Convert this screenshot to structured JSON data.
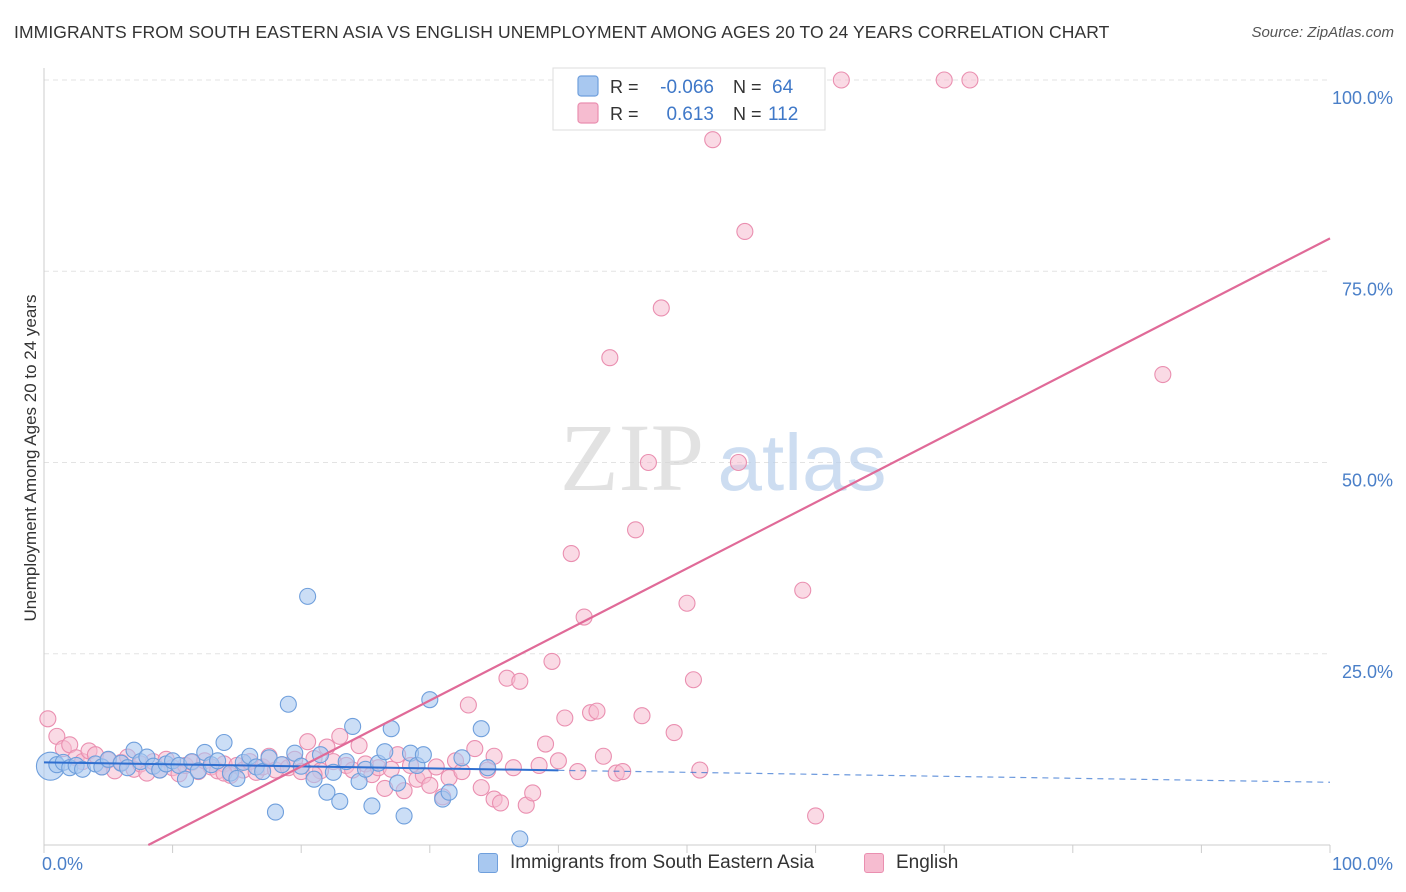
{
  "title": "IMMIGRANTS FROM SOUTH EASTERN ASIA VS ENGLISH UNEMPLOYMENT AMONG AGES 20 TO 24 YEARS CORRELATION CHART",
  "source": "Source: ZipAtlas.com",
  "watermark": {
    "zip": "ZIP",
    "atlas": "atlas"
  },
  "colors": {
    "blue_fill": "#a8c8f0",
    "blue_stroke": "#6f9fdc",
    "blue_line": "#2f6fd0",
    "pink_fill": "#f6bcd0",
    "pink_stroke": "#ea8fb0",
    "pink_line": "#e06a98",
    "axis_label": "#4a7fc8",
    "grid": "#e3e3e3"
  },
  "legend": {
    "series": [
      {
        "r_label": "R =",
        "r_value": "-0.066",
        "n_label": "N =",
        "n_value": "64"
      },
      {
        "r_label": "R =",
        "r_value": "0.613",
        "n_label": "N =",
        "n_value": "112"
      }
    ]
  },
  "bottom_legend": {
    "blue": "Immigrants from South Eastern Asia",
    "pink": "English"
  },
  "chart_data": {
    "type": "scatter",
    "xlabel": "",
    "ylabel": "Unemployment Among Ages 20 to 24 years",
    "xlim": [
      0,
      100
    ],
    "ylim": [
      0,
      100
    ],
    "x_tick_labels": {
      "min": "0.0%",
      "max": "100.0%"
    },
    "y_ticks": [
      25,
      50,
      75,
      100
    ],
    "y_tick_labels": [
      "25.0%",
      "50.0%",
      "75.0%",
      "100.0%"
    ],
    "grid": true,
    "legend_placement": "top-center",
    "series": [
      {
        "name": "Immigrants from South Eastern Asia",
        "color": "#a8c8f0",
        "trend": {
          "x0": 0,
          "y0": 10.8,
          "x1": 100,
          "y1": 8.2,
          "solid_until_x": 40
        },
        "points": [
          [
            0.5,
            10.3
          ],
          [
            1,
            10.5
          ],
          [
            1.5,
            10.8
          ],
          [
            2,
            10.1
          ],
          [
            2.5,
            10.4
          ],
          [
            3,
            9.9
          ],
          [
            4,
            10.6
          ],
          [
            4.5,
            10.2
          ],
          [
            5,
            11.2
          ],
          [
            6,
            10.7
          ],
          [
            6.5,
            10.1
          ],
          [
            7,
            12.4
          ],
          [
            7.5,
            10.9
          ],
          [
            8,
            11.5
          ],
          [
            8.5,
            10.3
          ],
          [
            9,
            9.8
          ],
          [
            9.5,
            10.6
          ],
          [
            10,
            11.0
          ],
          [
            10.5,
            10.4
          ],
          [
            11,
            8.6
          ],
          [
            11.5,
            10.9
          ],
          [
            12,
            9.7
          ],
          [
            12.5,
            12.1
          ],
          [
            13,
            10.5
          ],
          [
            13.5,
            11.0
          ],
          [
            14,
            13.4
          ],
          [
            14.5,
            9.4
          ],
          [
            15,
            8.7
          ],
          [
            15.5,
            10.8
          ],
          [
            16,
            11.6
          ],
          [
            16.5,
            10.2
          ],
          [
            17,
            9.6
          ],
          [
            17.5,
            11.4
          ],
          [
            18,
            4.3
          ],
          [
            18.5,
            10.5
          ],
          [
            19,
            18.4
          ],
          [
            19.5,
            12.0
          ],
          [
            20,
            10.3
          ],
          [
            20.5,
            32.5
          ],
          [
            21,
            8.6
          ],
          [
            21.5,
            11.8
          ],
          [
            22,
            6.9
          ],
          [
            22.5,
            9.5
          ],
          [
            23,
            5.7
          ],
          [
            23.5,
            10.9
          ],
          [
            24,
            15.5
          ],
          [
            24.5,
            8.3
          ],
          [
            25,
            9.9
          ],
          [
            25.5,
            5.1
          ],
          [
            26,
            10.7
          ],
          [
            26.5,
            12.2
          ],
          [
            27,
            15.2
          ],
          [
            27.5,
            8.1
          ],
          [
            28,
            3.8
          ],
          [
            28.5,
            12.0
          ],
          [
            29,
            10.4
          ],
          [
            29.5,
            11.8
          ],
          [
            30,
            19.0
          ],
          [
            31,
            6.0
          ],
          [
            31.5,
            6.9
          ],
          [
            32.5,
            11.4
          ],
          [
            34,
            15.2
          ],
          [
            34.5,
            10.1
          ],
          [
            37,
            0.8
          ]
        ]
      },
      {
        "name": "English",
        "color": "#f6bcd0",
        "trend": {
          "x0": 0,
          "y0": -7,
          "x1": 100,
          "y1": 79.3
        },
        "points": [
          [
            0.3,
            16.5
          ],
          [
            1,
            14.2
          ],
          [
            1.5,
            12.6
          ],
          [
            2,
            13.1
          ],
          [
            2.5,
            11.4
          ],
          [
            3,
            10.9
          ],
          [
            3.5,
            12.3
          ],
          [
            4,
            11.8
          ],
          [
            4.5,
            10.2
          ],
          [
            5,
            11.1
          ],
          [
            5.5,
            9.7
          ],
          [
            6,
            10.8
          ],
          [
            6.5,
            11.5
          ],
          [
            7,
            9.9
          ],
          [
            7.5,
            10.6
          ],
          [
            8,
            9.4
          ],
          [
            8.5,
            10.9
          ],
          [
            9,
            9.8
          ],
          [
            9.5,
            11.2
          ],
          [
            10,
            10.1
          ],
          [
            10.5,
            9.3
          ],
          [
            11,
            10.4
          ],
          [
            11.5,
            10.8
          ],
          [
            12,
            9.6
          ],
          [
            12.5,
            11.0
          ],
          [
            13,
            10.2
          ],
          [
            13.5,
            9.7
          ],
          [
            14,
            10.6
          ],
          [
            14.5,
            9.1
          ],
          [
            15,
            10.4
          ],
          [
            15.5,
            9.8
          ],
          [
            16,
            10.9
          ],
          [
            16.5,
            9.5
          ],
          [
            17,
            10.2
          ],
          [
            17.5,
            11.6
          ],
          [
            18,
            9.8
          ],
          [
            18.5,
            10.5
          ],
          [
            19,
            10.1
          ],
          [
            19.5,
            11.2
          ],
          [
            20,
            9.6
          ],
          [
            20.5,
            13.5
          ],
          [
            21,
            11.3
          ],
          [
            21.5,
            9.7
          ],
          [
            22,
            12.8
          ],
          [
            22.5,
            10.9
          ],
          [
            23,
            14.2
          ],
          [
            23.5,
            10.4
          ],
          [
            24,
            9.8
          ],
          [
            24.5,
            13.0
          ],
          [
            25,
            10.6
          ],
          [
            25.5,
            9.2
          ],
          [
            26,
            10.1
          ],
          [
            26.5,
            7.4
          ],
          [
            27,
            9.9
          ],
          [
            27.5,
            11.8
          ],
          [
            28,
            7.1
          ],
          [
            28.5,
            10.4
          ],
          [
            29,
            8.6
          ],
          [
            29.5,
            9.1
          ],
          [
            30,
            7.8
          ],
          [
            30.5,
            10.2
          ],
          [
            31,
            6.3
          ],
          [
            31.5,
            8.8
          ],
          [
            32,
            11.0
          ],
          [
            32.5,
            9.6
          ],
          [
            33,
            18.3
          ],
          [
            33.5,
            12.6
          ],
          [
            34,
            7.5
          ],
          [
            34.5,
            9.8
          ],
          [
            35,
            6.0
          ],
          [
            35.5,
            5.5
          ],
          [
            36,
            21.8
          ],
          [
            36.5,
            10.1
          ],
          [
            37,
            21.4
          ],
          [
            37.5,
            5.2
          ],
          [
            38,
            6.8
          ],
          [
            38.5,
            10.4
          ],
          [
            39,
            13.2
          ],
          [
            39.5,
            24.0
          ],
          [
            40,
            11.0
          ],
          [
            40.5,
            16.6
          ],
          [
            41,
            38.1
          ],
          [
            41.5,
            9.6
          ],
          [
            42,
            29.8
          ],
          [
            42.5,
            17.3
          ],
          [
            43,
            17.5
          ],
          [
            43.5,
            11.6
          ],
          [
            44,
            63.7
          ],
          [
            44.5,
            9.4
          ],
          [
            45,
            9.6
          ],
          [
            46,
            41.2
          ],
          [
            46.5,
            16.9
          ],
          [
            47,
            50.0
          ],
          [
            48,
            70.2
          ],
          [
            49,
            14.7
          ],
          [
            50,
            31.6
          ],
          [
            50.5,
            21.6
          ],
          [
            51,
            9.8
          ],
          [
            52,
            92.2
          ],
          [
            52.5,
            100
          ],
          [
            54,
            50.0
          ],
          [
            54.5,
            80.2
          ],
          [
            56,
            100
          ],
          [
            59,
            33.3
          ],
          [
            60,
            3.8
          ],
          [
            62,
            100
          ],
          [
            70,
            100
          ],
          [
            72,
            100
          ],
          [
            87,
            61.5
          ],
          [
            35,
            11.6
          ],
          [
            14,
            9.4
          ],
          [
            21,
            9.2
          ]
        ]
      }
    ]
  }
}
